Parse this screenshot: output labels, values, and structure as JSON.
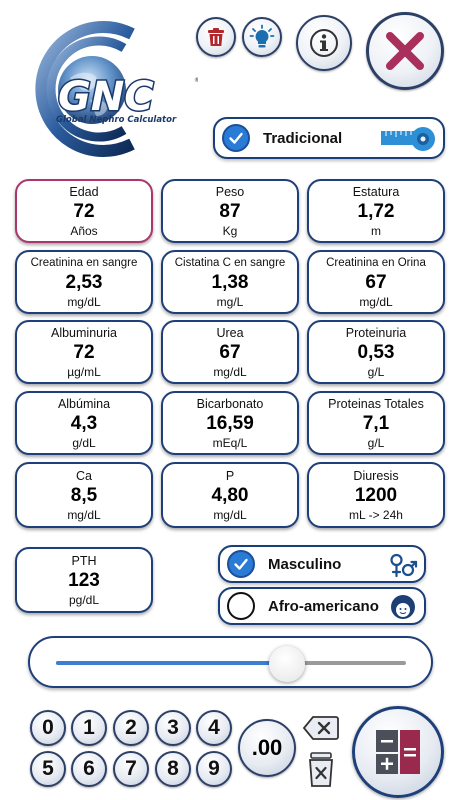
{
  "header": {
    "logo_letters": "GNC",
    "logo_subtitle": "Global Nephro Calculator",
    "icons": {
      "trash": "trash-icon",
      "bulb": "lightbulb-icon",
      "info": "info-icon",
      "close": "close-icon"
    }
  },
  "mode": {
    "label": "Tradicional",
    "checked": true,
    "icon": "tape-measure-icon"
  },
  "fields": [
    {
      "id": "edad",
      "label": "Edad",
      "value": "72",
      "unit": "Años",
      "active": true
    },
    {
      "id": "peso",
      "label": "Peso",
      "value": "87",
      "unit": "Kg"
    },
    {
      "id": "estatura",
      "label": "Estatura",
      "value": "1,72",
      "unit": "m"
    },
    {
      "id": "creat-sangre",
      "label": "Creatinina en sangre",
      "value": "2,53",
      "unit": "mg/dL"
    },
    {
      "id": "cistatina",
      "label": "Cistatina C en sangre",
      "value": "1,38",
      "unit": "mg/L"
    },
    {
      "id": "creat-orina",
      "label": "Creatinina en Orina",
      "value": "67",
      "unit": "mg/dL"
    },
    {
      "id": "albuminuria",
      "label": "Albuminuria",
      "value": "72",
      "unit": "µg/mL"
    },
    {
      "id": "urea",
      "label": "Urea",
      "value": "67",
      "unit": "mg/dL"
    },
    {
      "id": "proteinuria",
      "label": "Proteinuria",
      "value": "0,53",
      "unit": "g/L"
    },
    {
      "id": "albumina",
      "label": "Albúmina",
      "value": "4,3",
      "unit": "g/dL"
    },
    {
      "id": "bicarbonato",
      "label": "Bicarbonato",
      "value": "16,59",
      "unit": "mEq/L"
    },
    {
      "id": "proteinas-totales",
      "label": "Proteinas Totales",
      "value": "7,1",
      "unit": "g/L"
    },
    {
      "id": "ca",
      "label": "Ca",
      "value": "8,5",
      "unit": "mg/dL"
    },
    {
      "id": "p",
      "label": "P",
      "value": "4,80",
      "unit": "mg/dL"
    },
    {
      "id": "diuresis",
      "label": "Diuresis",
      "value": "1200",
      "unit": "mL -> 24h"
    },
    {
      "id": "pth",
      "label": "PTH",
      "value": "123",
      "unit": "pg/dL"
    }
  ],
  "sex": {
    "label": "Masculino",
    "checked": true,
    "icon": "gender-icon"
  },
  "race": {
    "label": "Afro-americano",
    "checked": false,
    "icon": "afro-person-icon"
  },
  "slider": {
    "fraction": 0.66
  },
  "keypad": {
    "digits": [
      "0",
      "1",
      "2",
      "3",
      "4",
      "5",
      "6",
      "7",
      "8",
      "9"
    ],
    "decimal_label": ".00",
    "icons": {
      "backspace": "backspace-icon",
      "clear": "clear-icon",
      "calculate": "calculator-icon"
    }
  }
}
